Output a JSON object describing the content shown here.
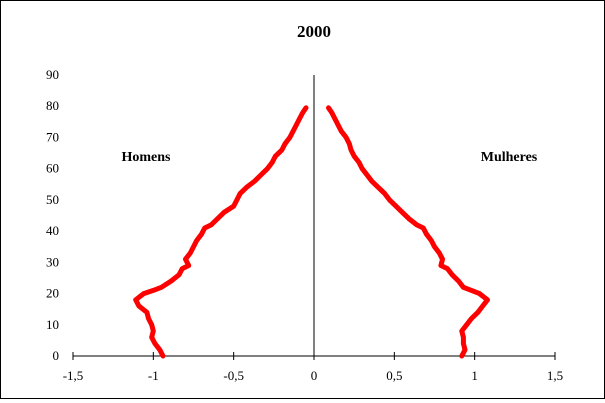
{
  "chart_data": {
    "type": "line",
    "title": "2000",
    "xlabel": "",
    "ylabel": "",
    "xlim": [
      -1.5,
      1.5
    ],
    "ylim": [
      0,
      90
    ],
    "x_ticks": [
      "-1,5",
      "-1",
      "-0,5",
      "0",
      "0,5",
      "1",
      "1,5"
    ],
    "x_tick_values": [
      -1.5,
      -1,
      -0.5,
      0,
      0.5,
      1,
      1.5
    ],
    "y_ticks": [
      "0",
      "10",
      "20",
      "30",
      "40",
      "50",
      "60",
      "70",
      "80",
      "90"
    ],
    "y_tick_values": [
      0,
      10,
      20,
      30,
      40,
      50,
      60,
      70,
      80,
      90
    ],
    "grid": false,
    "legend": "none",
    "line_color": "#ff0000",
    "annotations": [
      {
        "text": "Homens",
        "x": -1.0,
        "y": 65
      },
      {
        "text": "Mulheres",
        "x": 1.1,
        "y": 65
      }
    ],
    "series": [
      {
        "color": "#ff0000",
        "points": [
          [
            -0.94,
            0
          ],
          [
            -0.96,
            2
          ],
          [
            -0.99,
            4
          ],
          [
            -1.01,
            6
          ],
          [
            -1.0,
            8
          ],
          [
            -1.01,
            10
          ],
          [
            -1.03,
            12
          ],
          [
            -1.04,
            14
          ],
          [
            -1.09,
            16
          ],
          [
            -1.11,
            18
          ],
          [
            -1.06,
            20
          ],
          [
            -1.0,
            21
          ],
          [
            -0.95,
            22
          ],
          [
            -0.89,
            24
          ],
          [
            -0.84,
            26
          ],
          [
            -0.82,
            28
          ],
          [
            -0.78,
            29
          ],
          [
            -0.8,
            31
          ],
          [
            -0.77,
            33
          ],
          [
            -0.75,
            35
          ],
          [
            -0.73,
            37
          ],
          [
            -0.7,
            39
          ],
          [
            -0.68,
            41
          ],
          [
            -0.64,
            42
          ],
          [
            -0.6,
            44
          ],
          [
            -0.56,
            46
          ],
          [
            -0.5,
            48
          ],
          [
            -0.48,
            50
          ],
          [
            -0.46,
            52
          ],
          [
            -0.42,
            54
          ],
          [
            -0.37,
            56
          ],
          [
            -0.33,
            58
          ],
          [
            -0.29,
            60
          ],
          [
            -0.26,
            62
          ],
          [
            -0.24,
            64
          ],
          [
            -0.2,
            66
          ],
          [
            -0.18,
            68
          ],
          [
            -0.15,
            70
          ],
          [
            -0.13,
            72
          ],
          [
            -0.11,
            74
          ],
          [
            -0.09,
            76
          ],
          [
            -0.07,
            78
          ],
          [
            -0.05,
            79.5
          ]
        ]
      },
      {
        "color": "#ff0000",
        "points": [
          [
            0.92,
            0
          ],
          [
            0.94,
            2
          ],
          [
            0.93,
            4
          ],
          [
            0.93,
            6
          ],
          [
            0.92,
            8
          ],
          [
            0.95,
            10
          ],
          [
            0.98,
            12
          ],
          [
            1.02,
            14
          ],
          [
            1.05,
            16
          ],
          [
            1.08,
            18
          ],
          [
            1.03,
            20
          ],
          [
            0.98,
            21
          ],
          [
            0.93,
            22
          ],
          [
            0.9,
            24
          ],
          [
            0.86,
            26
          ],
          [
            0.83,
            28
          ],
          [
            0.79,
            29
          ],
          [
            0.8,
            31
          ],
          [
            0.78,
            33
          ],
          [
            0.75,
            35
          ],
          [
            0.73,
            37
          ],
          [
            0.7,
            39
          ],
          [
            0.68,
            41
          ],
          [
            0.64,
            42
          ],
          [
            0.59,
            44
          ],
          [
            0.55,
            46
          ],
          [
            0.51,
            48
          ],
          [
            0.47,
            50
          ],
          [
            0.44,
            52
          ],
          [
            0.4,
            54
          ],
          [
            0.36,
            56
          ],
          [
            0.33,
            58
          ],
          [
            0.3,
            60
          ],
          [
            0.28,
            62
          ],
          [
            0.25,
            64
          ],
          [
            0.23,
            66
          ],
          [
            0.22,
            68
          ],
          [
            0.2,
            70
          ],
          [
            0.17,
            72
          ],
          [
            0.15,
            74
          ],
          [
            0.13,
            76
          ],
          [
            0.11,
            78
          ],
          [
            0.09,
            79.5
          ]
        ]
      }
    ]
  }
}
